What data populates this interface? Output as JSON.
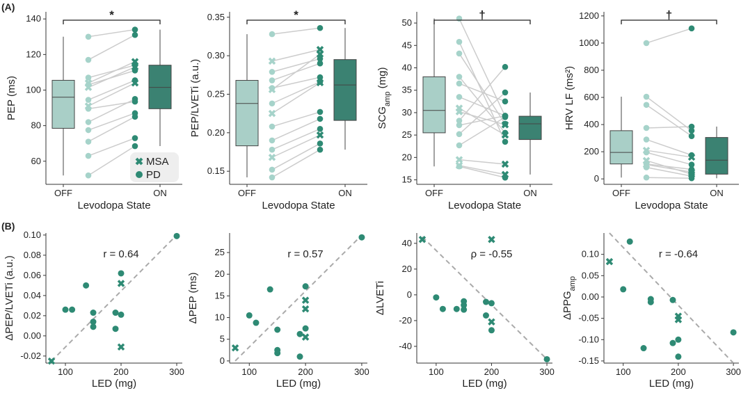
{
  "panel_labels": {
    "a": "(A)",
    "b": "(B)"
  },
  "legend": {
    "msa": "MSA",
    "pd": "PD"
  },
  "colors": {
    "off_box": "#a9cfc7",
    "on_box": "#3b8272",
    "marker": "#2e8a74",
    "marker_light": "#a6d3ca",
    "line": "#cccccc",
    "diag": "#aaaaaa"
  },
  "chart_data": [
    {
      "type": "box",
      "id": "pep",
      "ylabel": "PEP (ms)",
      "xlabel": "Levodopa State",
      "categories": [
        "OFF",
        "ON"
      ],
      "yticks": [
        60,
        80,
        100,
        120,
        140
      ],
      "ylim": [
        47,
        144
      ],
      "significance": "*",
      "boxes": [
        {
          "label": "OFF",
          "whisker_low": 52,
          "q1": 78.5,
          "median": 96,
          "q3": 105.5,
          "whisker_high": 130
        },
        {
          "label": "ON",
          "whisker_low": 68.5,
          "q1": 89.5,
          "median": 101.5,
          "q3": 114,
          "whisker_high": 134
        }
      ],
      "pairs": [
        {
          "group": "PD",
          "off": 52,
          "on": 68.5
        },
        {
          "group": "PD",
          "off": 63,
          "on": 73
        },
        {
          "group": "PD",
          "off": 71,
          "on": 85
        },
        {
          "group": "PD",
          "off": 77.5,
          "on": 87
        },
        {
          "group": "PD",
          "off": 82,
          "on": 95
        },
        {
          "group": "PD",
          "off": 89.5,
          "on": 93.5
        },
        {
          "group": "MSA",
          "off": 91,
          "on": 104
        },
        {
          "group": "PD",
          "off": 94.5,
          "on": 105.5
        },
        {
          "group": "MSA",
          "off": 101.5,
          "on": 113
        },
        {
          "group": "PD",
          "off": 103,
          "on": 111
        },
        {
          "group": "MSA",
          "off": 104,
          "on": 116
        },
        {
          "group": "PD",
          "off": 107,
          "on": 114
        },
        {
          "group": "PD",
          "off": 117,
          "on": 131
        },
        {
          "group": "PD",
          "off": 130,
          "on": 134
        }
      ]
    },
    {
      "type": "box",
      "id": "pep_lveti",
      "ylabel": "PEP/LVETi (a.u.)",
      "xlabel": "Levodopa State",
      "categories": [
        "OFF",
        "ON"
      ],
      "yticks": [
        0.15,
        0.2,
        0.25,
        0.3,
        0.35
      ],
      "tick_labels": [
        "0.15",
        "0.20",
        "0.25",
        "0.30",
        "0.35"
      ],
      "ylim": [
        0.133,
        0.357
      ],
      "significance": "*",
      "boxes": [
        {
          "label": "OFF",
          "whisker_low": 0.142,
          "q1": 0.183,
          "median": 0.238,
          "q3": 0.268,
          "whisker_high": 0.328
        },
        {
          "label": "ON",
          "whisker_low": 0.178,
          "q1": 0.216,
          "median": 0.262,
          "q3": 0.295,
          "whisker_high": 0.336
        }
      ],
      "pairs": [
        {
          "group": "PD",
          "off": 0.142,
          "on": 0.178
        },
        {
          "group": "PD",
          "off": 0.152,
          "on": 0.186
        },
        {
          "group": "MSA",
          "off": 0.168,
          "on": 0.197
        },
        {
          "group": "PD",
          "off": 0.178,
          "on": 0.205
        },
        {
          "group": "PD",
          "off": 0.19,
          "on": 0.218
        },
        {
          "group": "PD",
          "off": 0.208,
          "on": 0.227
        },
        {
          "group": "MSA",
          "off": 0.225,
          "on": 0.265
        },
        {
          "group": "PD",
          "off": 0.238,
          "on": 0.266
        },
        {
          "group": "MSA",
          "off": 0.256,
          "on": 0.302
        },
        {
          "group": "PD",
          "off": 0.258,
          "on": 0.272
        },
        {
          "group": "PD",
          "off": 0.268,
          "on": 0.29
        },
        {
          "group": "PD",
          "off": 0.279,
          "on": 0.296
        },
        {
          "group": "MSA",
          "off": 0.293,
          "on": 0.308
        },
        {
          "group": "PD",
          "off": 0.328,
          "on": 0.336
        }
      ]
    },
    {
      "type": "box",
      "id": "scgamp",
      "ylabel": "SCGamp (mg)",
      "xlabel": "Levodopa State",
      "categories": [
        "OFF",
        "ON"
      ],
      "yticks": [
        15,
        20,
        25,
        30,
        35,
        40,
        45,
        50
      ],
      "ylim": [
        14,
        52.5
      ],
      "significance": "†",
      "boxes": [
        {
          "label": "OFF",
          "whisker_low": 18,
          "q1": 25.5,
          "median": 30.5,
          "q3": 38,
          "whisker_high": 51
        },
        {
          "label": "ON",
          "whisker_low": 16.2,
          "q1": 24,
          "median": 27.5,
          "q3": 29.2,
          "whisker_high": 34.5
        }
      ],
      "pairs": [
        {
          "group": "PD",
          "off": 51,
          "on": 29.2
        },
        {
          "group": "PD",
          "off": 45.8,
          "on": 23.5
        },
        {
          "group": "PD",
          "off": 43.2,
          "on": 27.5
        },
        {
          "group": "PD",
          "off": 38,
          "on": 25.5
        },
        {
          "group": "PD",
          "off": 36.5,
          "on": 32.5
        },
        {
          "group": "PD",
          "off": 33.5,
          "on": 29.3
        },
        {
          "group": "MSA",
          "off": 31,
          "on": 25
        },
        {
          "group": "MSA",
          "off": 30.2,
          "on": 27.3
        },
        {
          "group": "PD",
          "off": 28.2,
          "on": 40.2
        },
        {
          "group": "PD",
          "off": 27.2,
          "on": 29.3
        },
        {
          "group": "PD",
          "off": 25.2,
          "on": 34.5
        },
        {
          "group": "PD",
          "off": 22.7,
          "on": 29
        },
        {
          "group": "MSA",
          "off": 19.5,
          "on": 18.5
        },
        {
          "group": "PD",
          "off": 18,
          "on": 15.5
        },
        {
          "group": "MSA",
          "off": 18.2,
          "on": 16.2
        }
      ]
    },
    {
      "type": "box",
      "id": "hrv_lf",
      "ylabel": "HRV LF (ms²)",
      "xlabel": "Levodopa State",
      "categories": [
        "OFF",
        "ON"
      ],
      "yticks": [
        0,
        200,
        400,
        600,
        800,
        1000,
        1200
      ],
      "ylim": [
        -40,
        1230
      ],
      "significance": "†",
      "boxes": [
        {
          "label": "OFF",
          "whisker_low": 10,
          "q1": 110,
          "median": 195,
          "q3": 355,
          "whisker_high": 605
        },
        {
          "label": "ON",
          "whisker_low": 5,
          "q1": 35,
          "median": 138,
          "q3": 305,
          "whisker_high": 385
        }
      ],
      "pairs": [
        {
          "group": "PD",
          "off": 1000,
          "on": 1108
        },
        {
          "group": "PD",
          "off": 605,
          "on": 355
        },
        {
          "group": "PD",
          "off": 545,
          "on": 315
        },
        {
          "group": "PD",
          "off": 375,
          "on": 385
        },
        {
          "group": "PD",
          "off": 290,
          "on": 175
        },
        {
          "group": "MSA",
          "off": 210,
          "on": 160
        },
        {
          "group": "PD",
          "off": 195,
          "on": 105
        },
        {
          "group": "MSA",
          "off": 135,
          "on": 35
        },
        {
          "group": "PD",
          "off": 110,
          "on": 70
        },
        {
          "group": "MSA",
          "off": 105,
          "on": 50
        },
        {
          "group": "PD",
          "off": 85,
          "on": 20
        },
        {
          "group": "PD",
          "off": 10,
          "on": 5
        }
      ]
    },
    {
      "type": "scatter",
      "id": "d_pep_lveti",
      "ylabel": "ΔPEP/LVETi (a.u.)",
      "xlabel": "LED (mg)",
      "stat": "r = 0.64",
      "xlim": [
        65,
        310
      ],
      "ylim": [
        -0.027,
        0.102
      ],
      "xticks": [
        100,
        200,
        300
      ],
      "yticks": [
        -0.02,
        0,
        0.02,
        0.04,
        0.06,
        0.08,
        0.1
      ],
      "tick_labels": [
        "-0.02",
        "0.00",
        "0.02",
        "0.04",
        "0.06",
        "0.08",
        "0.10"
      ],
      "diagonal": [
        [
          75,
          -0.025
        ],
        [
          300,
          0.1
        ]
      ],
      "points": [
        {
          "x": 300,
          "y": 0.099,
          "group": "PD"
        },
        {
          "x": 200,
          "y": 0.062,
          "group": "PD"
        },
        {
          "x": 200,
          "y": 0.052,
          "group": "MSA"
        },
        {
          "x": 137,
          "y": 0.05,
          "group": "PD"
        },
        {
          "x": 100,
          "y": 0.026,
          "group": "PD"
        },
        {
          "x": 112,
          "y": 0.026,
          "group": "PD"
        },
        {
          "x": 150,
          "y": 0.023,
          "group": "PD"
        },
        {
          "x": 190,
          "y": 0.023,
          "group": "PD"
        },
        {
          "x": 200,
          "y": 0.021,
          "group": "PD"
        },
        {
          "x": 150,
          "y": 0.014,
          "group": "PD"
        },
        {
          "x": 150,
          "y": 0.009,
          "group": "PD"
        },
        {
          "x": 190,
          "y": 0.007,
          "group": "PD"
        },
        {
          "x": 200,
          "y": -0.011,
          "group": "MSA"
        },
        {
          "x": 75,
          "y": -0.025,
          "group": "MSA"
        }
      ]
    },
    {
      "type": "scatter",
      "id": "d_pep",
      "ylabel": "ΔPEP (ms)",
      "xlabel": "LED (mg)",
      "stat": "r = 0.57",
      "xlim": [
        65,
        310
      ],
      "ylim": [
        -0.5,
        29.5
      ],
      "xticks": [
        100,
        200,
        300
      ],
      "yticks": [
        0,
        5,
        10,
        15,
        20,
        25
      ],
      "diagonal": [
        [
          75,
          0
        ],
        [
          300,
          29
        ]
      ],
      "points": [
        {
          "x": 300,
          "y": 28.5,
          "group": "PD"
        },
        {
          "x": 200,
          "y": 17.2,
          "group": "PD"
        },
        {
          "x": 137,
          "y": 16.5,
          "group": "PD"
        },
        {
          "x": 200,
          "y": 14,
          "group": "MSA"
        },
        {
          "x": 200,
          "y": 12,
          "group": "MSA"
        },
        {
          "x": 100,
          "y": 10.5,
          "group": "PD"
        },
        {
          "x": 112,
          "y": 8.8,
          "group": "PD"
        },
        {
          "x": 200,
          "y": 7.5,
          "group": "PD"
        },
        {
          "x": 150,
          "y": 7.2,
          "group": "PD"
        },
        {
          "x": 190,
          "y": 6.2,
          "group": "PD"
        },
        {
          "x": 200,
          "y": 5.5,
          "group": "MSA"
        },
        {
          "x": 150,
          "y": 2.5,
          "group": "PD"
        },
        {
          "x": 150,
          "y": 1.8,
          "group": "PD"
        },
        {
          "x": 75,
          "y": 3,
          "group": "MSA"
        },
        {
          "x": 190,
          "y": 1,
          "group": "PD"
        }
      ]
    },
    {
      "type": "scatter",
      "id": "d_lveti",
      "ylabel": "ΔLVETi",
      "xlabel": "LED (mg)",
      "stat": "ρ = -0.55",
      "xlim": [
        65,
        310
      ],
      "ylim": [
        -53,
        48
      ],
      "xticks": [
        100,
        200,
        300
      ],
      "yticks": [
        -40,
        -20,
        0,
        20,
        40
      ],
      "diagonal": [
        [
          75,
          45
        ],
        [
          300,
          -50
        ]
      ],
      "points": [
        {
          "x": 75,
          "y": 43,
          "group": "MSA"
        },
        {
          "x": 200,
          "y": 43,
          "group": "MSA"
        },
        {
          "x": 100,
          "y": -2,
          "group": "PD"
        },
        {
          "x": 150,
          "y": -5,
          "group": "PD"
        },
        {
          "x": 190,
          "y": -5.5,
          "group": "PD"
        },
        {
          "x": 200,
          "y": -6.5,
          "group": "PD"
        },
        {
          "x": 150,
          "y": -8,
          "group": "PD"
        },
        {
          "x": 112,
          "y": -11,
          "group": "PD"
        },
        {
          "x": 137,
          "y": -11,
          "group": "PD"
        },
        {
          "x": 150,
          "y": -11.5,
          "group": "PD"
        },
        {
          "x": 190,
          "y": -16,
          "group": "PD"
        },
        {
          "x": 200,
          "y": -21,
          "group": "MSA"
        },
        {
          "x": 200,
          "y": -27.5,
          "group": "PD"
        },
        {
          "x": 300,
          "y": -50,
          "group": "PD"
        }
      ]
    },
    {
      "type": "scatter",
      "id": "d_ppgamp",
      "ylabel": "ΔPPGamp",
      "xlabel": "LED (mg)",
      "stat": "r = -0.64",
      "xlim": [
        65,
        310
      ],
      "ylim": [
        -0.155,
        0.15
      ],
      "xticks": [
        100,
        200,
        300
      ],
      "yticks": [
        -0.15,
        -0.1,
        -0.05,
        0,
        0.05,
        0.1
      ],
      "tick_labels": [
        "-0.15",
        "-0.10",
        "-0.05",
        "0.00",
        "0.05",
        "0.10"
      ],
      "diagonal": [
        [
          75,
          0.15
        ],
        [
          300,
          -0.155
        ]
      ],
      "points": [
        {
          "x": 112,
          "y": 0.13,
          "group": "PD"
        },
        {
          "x": 75,
          "y": 0.083,
          "group": "MSA"
        },
        {
          "x": 100,
          "y": 0.018,
          "group": "PD"
        },
        {
          "x": 150,
          "y": -0.005,
          "group": "PD"
        },
        {
          "x": 190,
          "y": -0.007,
          "group": "PD"
        },
        {
          "x": 150,
          "y": -0.012,
          "group": "PD"
        },
        {
          "x": 200,
          "y": -0.045,
          "group": "MSA"
        },
        {
          "x": 200,
          "y": -0.053,
          "group": "MSA"
        },
        {
          "x": 300,
          "y": -0.083,
          "group": "PD"
        },
        {
          "x": 200,
          "y": -0.1,
          "group": "PD"
        },
        {
          "x": 190,
          "y": -0.108,
          "group": "PD"
        },
        {
          "x": 137,
          "y": -0.12,
          "group": "PD"
        },
        {
          "x": 200,
          "y": -0.14,
          "group": "PD"
        }
      ]
    }
  ]
}
